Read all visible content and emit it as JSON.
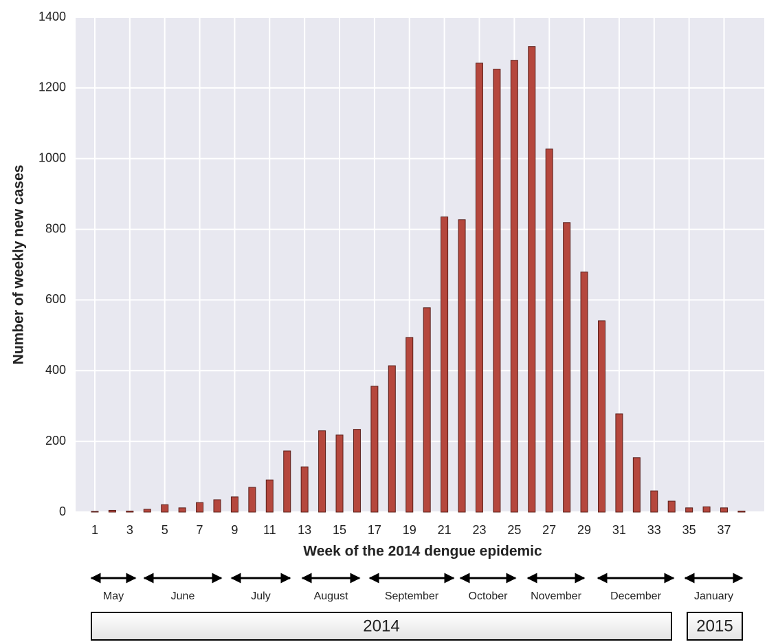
{
  "chart_data": {
    "type": "bar",
    "x_label": "Week of the 2014 dengue epidemic",
    "y_label": "Number of weekly new cases",
    "x": [
      1,
      2,
      3,
      4,
      5,
      6,
      7,
      8,
      9,
      10,
      11,
      12,
      13,
      14,
      15,
      16,
      17,
      18,
      19,
      20,
      21,
      22,
      23,
      24,
      25,
      26,
      27,
      28,
      29,
      30,
      31,
      32,
      33,
      34,
      35,
      36,
      37,
      38
    ],
    "values": [
      2,
      5,
      3,
      8,
      21,
      12,
      27,
      35,
      43,
      70,
      91,
      173,
      128,
      230,
      218,
      234,
      356,
      414,
      494,
      578,
      835,
      827,
      1270,
      1253,
      1278,
      1317,
      1027,
      819,
      679,
      541,
      278,
      154,
      60,
      31,
      12,
      15,
      12,
      3
    ],
    "color": "#b5473d",
    "xlim": [
      -0.1,
      39.3
    ],
    "xticks": [
      1,
      3,
      5,
      7,
      9,
      11,
      13,
      15,
      17,
      19,
      21,
      23,
      25,
      27,
      29,
      31,
      33,
      35,
      37
    ],
    "ylim": [
      0,
      1400
    ],
    "yticks": [
      0,
      200,
      400,
      600,
      800,
      1000,
      1200,
      1400
    ],
    "grid": true,
    "months": [
      "May",
      "June",
      "July",
      "August",
      "September",
      "October",
      "November",
      "December",
      "January"
    ],
    "years": [
      "2014",
      "2015"
    ]
  }
}
